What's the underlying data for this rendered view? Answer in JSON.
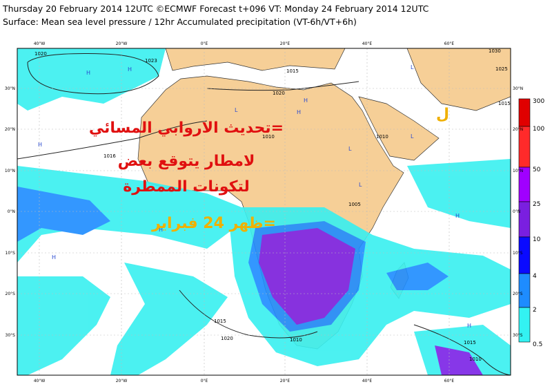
{
  "header": {
    "line1": "Thursday 20 February 2014 12UTC ©ECMWF Forecast t+096 VT: Monday 24 February 2014 12UTC",
    "line2": "Surface: Mean sea level pressure / 12hr Accumulated precipitation (VT-6h/VT+6h)"
  },
  "axes": {
    "lon_labels": [
      "40°W",
      "20°W",
      "0°E",
      "20°E",
      "40°E",
      "60°E"
    ],
    "lat_labels": [
      "30°N",
      "20°N",
      "10°N",
      "0°N",
      "10°S",
      "20°S",
      "30°S"
    ]
  },
  "legend": {
    "values": [
      "300",
      "100",
      "50",
      "25",
      "10",
      "4",
      "2",
      "0.5"
    ]
  },
  "contour_labels": [
    "1020",
    "1023",
    "1015",
    "1020",
    "1010",
    "1016",
    "1010",
    "1030",
    "1025",
    "1015",
    "1005",
    "1015",
    "1020",
    "1010",
    "1015",
    "1010"
  ],
  "pressure_markers": [
    "H",
    "H",
    "H",
    "L",
    "H",
    "L",
    "L",
    "H",
    "H",
    "L",
    "H",
    "H",
    "H",
    "L"
  ],
  "overlay": {
    "lines": [
      "=تحديث الاروابي المسائي",
      "لامطار يتوقع بعض",
      "لتكونات الممطرة",
      "=ظهر 24 فبراير"
    ],
    "corner_mark": "ل"
  }
}
